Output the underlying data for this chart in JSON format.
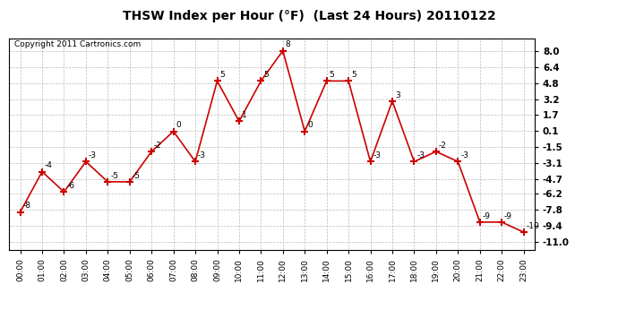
{
  "title": "THSW Index per Hour (°F)  (Last 24 Hours) 20110122",
  "copyright": "Copyright 2011 Cartronics.com",
  "hours": [
    "00:00",
    "01:00",
    "02:00",
    "03:00",
    "04:00",
    "05:00",
    "06:00",
    "07:00",
    "08:00",
    "09:00",
    "10:00",
    "11:00",
    "12:00",
    "13:00",
    "14:00",
    "15:00",
    "16:00",
    "17:00",
    "18:00",
    "19:00",
    "20:00",
    "21:00",
    "22:00",
    "23:00"
  ],
  "values": [
    -8,
    -4,
    -6,
    -3,
    -5,
    -5,
    -2,
    0,
    -3,
    5,
    1,
    5,
    8,
    0,
    5,
    5,
    -3,
    3,
    -3,
    -2,
    -3,
    -9,
    -9,
    -10
  ],
  "line_color": "#cc0000",
  "marker_color": "#cc0000",
  "bg_color": "#ffffff",
  "grid_color": "#bbbbbb",
  "yticks": [
    8.0,
    6.4,
    4.8,
    3.2,
    1.7,
    0.1,
    -1.5,
    -3.1,
    -4.7,
    -6.2,
    -7.8,
    -9.4,
    -11.0
  ],
  "ylim": [
    -11.8,
    9.2
  ],
  "xlim": [
    -0.5,
    23.5
  ]
}
